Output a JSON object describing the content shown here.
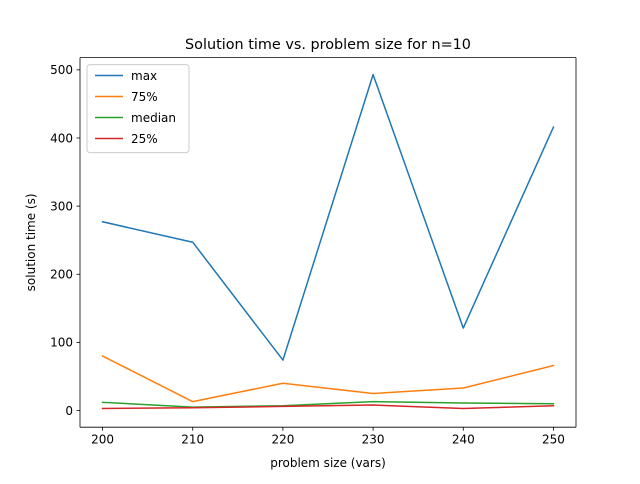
{
  "chart_data": {
    "type": "line",
    "title": "Solution time vs. problem size for n=10",
    "xlabel": "problem size (vars)",
    "ylabel": "solution time (s)",
    "x": [
      200,
      210,
      220,
      230,
      240,
      250
    ],
    "xlim": [
      197.5,
      252.5
    ],
    "ylim": [
      -24.5,
      518
    ],
    "xticks": [
      200,
      210,
      220,
      230,
      240,
      250
    ],
    "yticks": [
      0,
      100,
      200,
      300,
      400,
      500
    ],
    "grid": false,
    "legend_position": "upper-left",
    "series": [
      {
        "name": "max",
        "color": "#1f77b4",
        "values": [
          277,
          247,
          74,
          493,
          121,
          416
        ]
      },
      {
        "name": "75%",
        "color": "#ff7f0e",
        "values": [
          80,
          13,
          40,
          25,
          33,
          66
        ]
      },
      {
        "name": "median",
        "color": "#2ca02c",
        "values": [
          12,
          5,
          7,
          13,
          11,
          10
        ]
      },
      {
        "name": "25%",
        "color": "#d62728",
        "values": [
          3,
          4,
          6,
          8,
          3,
          7
        ]
      }
    ]
  }
}
